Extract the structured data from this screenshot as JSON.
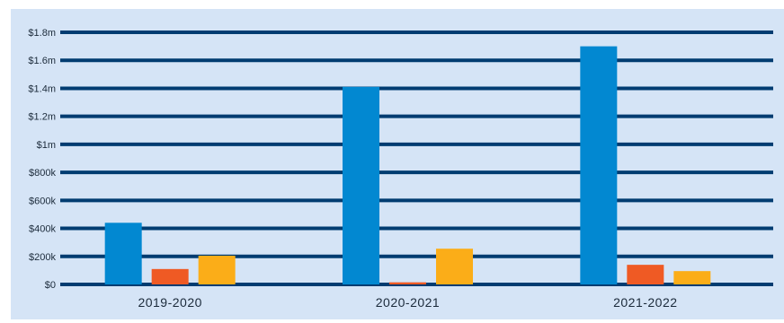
{
  "chart_data": {
    "type": "bar",
    "categories": [
      "2019-2020",
      "2020-2021",
      "2021-2022"
    ],
    "series": [
      {
        "values": [
          440000,
          1410000,
          1700000
        ],
        "color": "#0288d1"
      },
      {
        "values": [
          110000,
          15000,
          140000
        ],
        "color": "#ef5a24"
      },
      {
        "values": [
          205000,
          255000,
          95000
        ],
        "color": "#fbad18"
      }
    ],
    "ylim": [
      0,
      1800000
    ],
    "ytick_values": [
      0,
      200000,
      400000,
      600000,
      800000,
      1000000,
      1200000,
      1400000,
      1600000,
      1800000
    ],
    "ytick_labels": [
      "$0",
      "$200k",
      "$400k",
      "$600k",
      "$800k",
      "$1m",
      "$1.2m",
      "$1.4m",
      "$1.6m",
      "$1.8m"
    ],
    "xlabel": "",
    "ylabel": "",
    "title": "",
    "grid": true,
    "legend": "none",
    "colors": {
      "background": "#d5e4f6",
      "gridline": "#003c71",
      "text": "#1b2a3a"
    }
  }
}
